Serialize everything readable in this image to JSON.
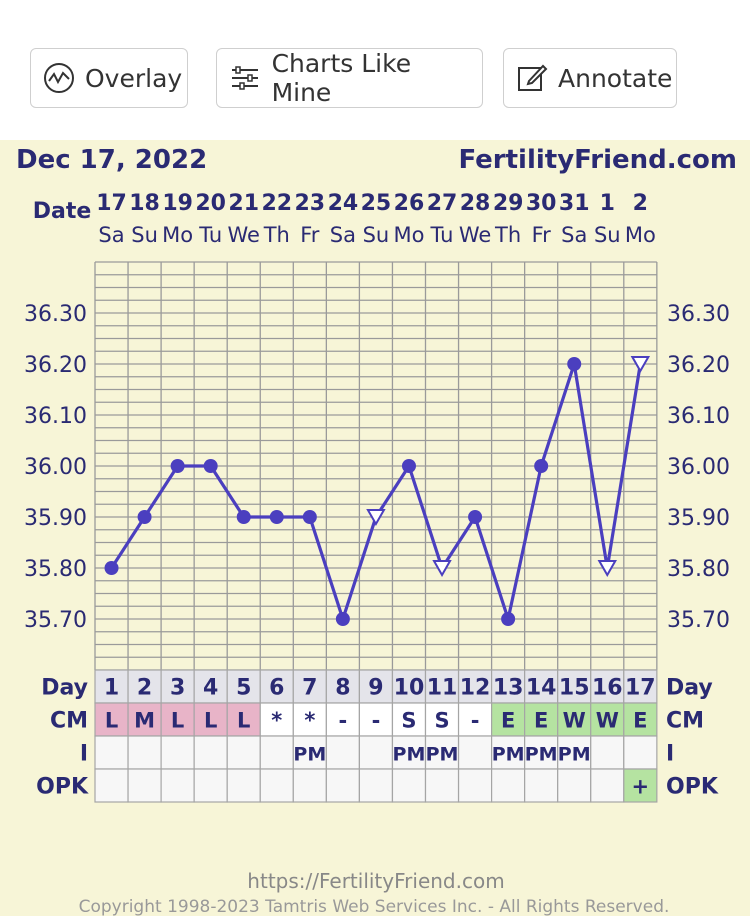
{
  "toolbar": {
    "overlay_label": "Overlay",
    "charts_like_mine_label": "Charts Like Mine",
    "annotate_label": "Annotate",
    "overlay_icon": "chart-circle-icon",
    "charts_like_mine_icon": "sliders-icon",
    "annotate_icon": "edit-icon"
  },
  "header": {
    "date": "Dec 17, 2022",
    "site": "FertilityFriend.com",
    "date_label": "Date"
  },
  "row_labels": {
    "day": "Day",
    "cm": "CM",
    "i": "I",
    "opk": "OPK"
  },
  "columns": [
    {
      "date": "17",
      "weekday": "Sa",
      "day": "1",
      "cm": "L",
      "i": "",
      "opk": ""
    },
    {
      "date": "18",
      "weekday": "Su",
      "day": "2",
      "cm": "M",
      "i": "",
      "opk": ""
    },
    {
      "date": "19",
      "weekday": "Mo",
      "day": "3",
      "cm": "L",
      "i": "",
      "opk": ""
    },
    {
      "date": "20",
      "weekday": "Tu",
      "day": "4",
      "cm": "L",
      "i": "",
      "opk": ""
    },
    {
      "date": "21",
      "weekday": "We",
      "day": "5",
      "cm": "L",
      "i": "",
      "opk": ""
    },
    {
      "date": "22",
      "weekday": "Th",
      "day": "6",
      "cm": "*",
      "i": "",
      "opk": ""
    },
    {
      "date": "23",
      "weekday": "Fr",
      "day": "7",
      "cm": "*",
      "i": "PM",
      "opk": ""
    },
    {
      "date": "24",
      "weekday": "Sa",
      "day": "8",
      "cm": "-",
      "i": "",
      "opk": ""
    },
    {
      "date": "25",
      "weekday": "Su",
      "day": "9",
      "cm": "-",
      "i": "",
      "opk": ""
    },
    {
      "date": "26",
      "weekday": "Mo",
      "day": "10",
      "cm": "S",
      "i": "PM",
      "opk": ""
    },
    {
      "date": "27",
      "weekday": "Tu",
      "day": "11",
      "cm": "S",
      "i": "PM",
      "opk": ""
    },
    {
      "date": "28",
      "weekday": "We",
      "day": "12",
      "cm": "-",
      "i": "",
      "opk": ""
    },
    {
      "date": "29",
      "weekday": "Th",
      "day": "13",
      "cm": "E",
      "i": "PM",
      "opk": ""
    },
    {
      "date": "30",
      "weekday": "Fr",
      "day": "14",
      "cm": "E",
      "i": "PM",
      "opk": ""
    },
    {
      "date": "31",
      "weekday": "Sa",
      "day": "15",
      "cm": "W",
      "i": "PM",
      "opk": ""
    },
    {
      "date": "1",
      "weekday": "Su",
      "day": "16",
      "cm": "W",
      "i": "",
      "opk": ""
    },
    {
      "date": "2",
      "weekday": "Mo",
      "day": "17",
      "cm": "E",
      "i": "",
      "opk": "+"
    }
  ],
  "cm_colors": {
    "L": "#e8b4c8",
    "M": "#e8b4c8",
    "E": "#b5e3a1",
    "W": "#b5e3a1",
    "S": "#ffffff",
    "*": "#ffffff",
    "-": "#ffffff"
  },
  "opk_positive_color": "#b5e3a1",
  "colors": {
    "line": "#4b3fbf",
    "text": "#2a2a73",
    "background": "#f7f5d7",
    "grid": "#9a9a9a"
  },
  "chart_data": {
    "type": "line",
    "ylim": [
      35.6,
      36.4
    ],
    "yticks": [
      "36.30",
      "36.20",
      "36.10",
      "36.00",
      "35.90",
      "35.80",
      "35.70"
    ],
    "series": [
      {
        "values": [
          35.8,
          35.9,
          36.0,
          36.0,
          35.9,
          35.9,
          35.9,
          35.7,
          35.9,
          36.0,
          35.8,
          35.9,
          35.7,
          36.0,
          36.2,
          35.8,
          36.2
        ],
        "markers": [
          "dot",
          "dot",
          "dot",
          "dot",
          "dot",
          "dot",
          "dot",
          "dot",
          "open-triangle",
          "dot",
          "open-triangle",
          "dot",
          "dot",
          "dot",
          "dot",
          "open-triangle",
          "open-triangle"
        ]
      }
    ]
  },
  "footer": {
    "url": "https://FertilityFriend.com",
    "copyright": "Copyright 1998-2023 Tamtris Web Services Inc. - All Rights Reserved."
  }
}
